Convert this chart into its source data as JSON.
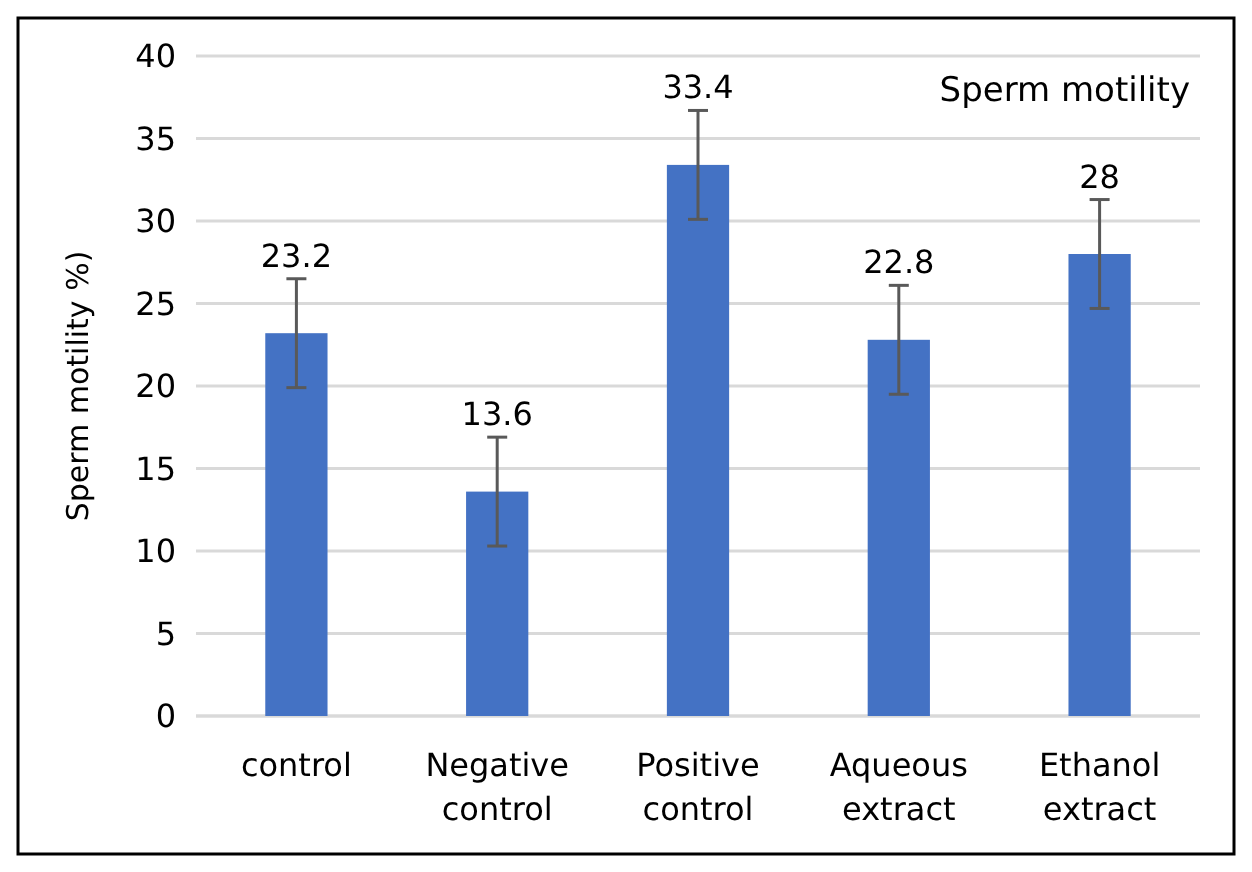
{
  "chart_data": {
    "type": "bar",
    "title": "Sperm motility",
    "ylabel": "Sperm motility %)",
    "categories": [
      "control",
      "Negative control",
      "Positive control",
      "Aqueous extract",
      "Ethanol extract"
    ],
    "values": [
      23.2,
      13.6,
      33.4,
      22.8,
      28
    ],
    "errors": [
      3.3,
      3.3,
      3.3,
      3.3,
      3.3
    ],
    "color": "#4472c4",
    "ylim": [
      0,
      40
    ],
    "yticks": [
      0,
      5,
      10,
      15,
      20,
      25,
      30,
      35,
      40
    ],
    "grid": "y",
    "data_labels": true
  }
}
